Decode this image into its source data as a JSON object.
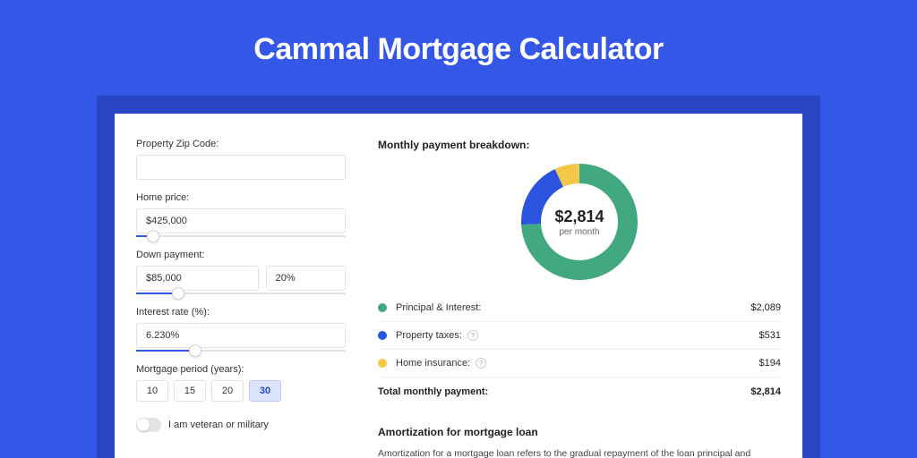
{
  "page": {
    "title": "Cammal Mortgage Calculator",
    "bg_color": "#3457e8",
    "shadow_color": "#2a45c4",
    "card_bg": "#ffffff"
  },
  "form": {
    "zip": {
      "label": "Property Zip Code:",
      "value": ""
    },
    "home_price": {
      "label": "Home price:",
      "value": "$425,000",
      "slider_pct": 8
    },
    "down_payment": {
      "label": "Down payment:",
      "value": "$85,000",
      "pct_value": "20%",
      "slider_pct": 20
    },
    "interest": {
      "label": "Interest rate (%):",
      "value": "6.230%",
      "slider_pct": 28
    },
    "period": {
      "label": "Mortgage period (years):",
      "options": [
        "10",
        "15",
        "20",
        "30"
      ],
      "selected": "30"
    },
    "veteran": {
      "label": "I am veteran or military",
      "on": false
    }
  },
  "breakdown": {
    "title": "Monthly payment breakdown:",
    "center_value": "$2,814",
    "center_sub": "per month",
    "chart": {
      "type": "donut",
      "size": 130,
      "thickness": 22,
      "background_color": "#ffffff",
      "slices": [
        {
          "key": "principal_interest",
          "color": "#41a880",
          "value": 2089
        },
        {
          "key": "property_taxes",
          "color": "#2a53e0",
          "value": 531
        },
        {
          "key": "home_insurance",
          "color": "#f4c748",
          "value": 194
        }
      ]
    },
    "items": [
      {
        "label": "Principal & Interest:",
        "amount": "$2,089",
        "color": "#41a880",
        "info": false
      },
      {
        "label": "Property taxes:",
        "amount": "$531",
        "color": "#2a53e0",
        "info": true
      },
      {
        "label": "Home insurance:",
        "amount": "$194",
        "color": "#f4c748",
        "info": true
      }
    ],
    "total_label": "Total monthly payment:",
    "total_amount": "$2,814"
  },
  "amortization": {
    "title": "Amortization for mortgage loan",
    "text": "Amortization for a mortgage loan refers to the gradual repayment of the loan principal and interest over a specified"
  }
}
